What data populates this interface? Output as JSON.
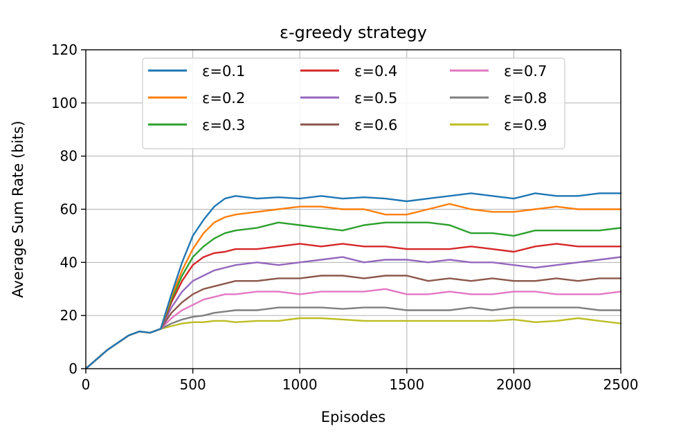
{
  "chart_data": {
    "type": "line",
    "title": "ε-greedy strategy",
    "xlabel": "Episodes",
    "ylabel": "Average Sum Rate (bits)",
    "xlim": [
      0,
      2500
    ],
    "ylim": [
      0,
      120
    ],
    "xticks": [
      0,
      500,
      1000,
      1500,
      2000,
      2500
    ],
    "yticks": [
      0,
      20,
      40,
      60,
      80,
      100,
      120
    ],
    "grid": true,
    "legend": {
      "placement": "top-center",
      "columns": 3
    },
    "series": [
      {
        "name": "ε=0.1",
        "color": "#1f77b4",
        "x": [
          0,
          100,
          200,
          250,
          300,
          350,
          400,
          450,
          500,
          550,
          600,
          650,
          700,
          800,
          900,
          1000,
          1100,
          1200,
          1300,
          1400,
          1500,
          1600,
          1700,
          1800,
          1900,
          2000,
          2100,
          2200,
          2300,
          2400,
          2500
        ],
        "y": [
          0,
          7,
          12.5,
          14,
          13.5,
          15,
          28,
          40,
          50,
          56,
          61,
          64,
          65,
          64,
          64.5,
          64,
          65,
          64,
          64.5,
          64,
          63,
          64,
          65,
          66,
          65,
          64,
          66,
          65,
          65,
          66,
          66
        ]
      },
      {
        "name": "ε=0.2",
        "color": "#ff7f0e",
        "x": [
          0,
          100,
          200,
          250,
          300,
          350,
          400,
          450,
          500,
          550,
          600,
          650,
          700,
          800,
          900,
          1000,
          1100,
          1200,
          1300,
          1400,
          1500,
          1600,
          1700,
          1800,
          1900,
          2000,
          2100,
          2200,
          2300,
          2400,
          2500
        ],
        "y": [
          0,
          7,
          12.5,
          14,
          13.5,
          15,
          27,
          37,
          45,
          51,
          55,
          57,
          58,
          59,
          60,
          61,
          61,
          60,
          60,
          58,
          58,
          60,
          62,
          60,
          59,
          59,
          60,
          61,
          60,
          60,
          60
        ]
      },
      {
        "name": "ε=0.3",
        "color": "#2ca02c",
        "x": [
          0,
          100,
          200,
          250,
          300,
          350,
          400,
          450,
          500,
          550,
          600,
          650,
          700,
          800,
          900,
          1000,
          1100,
          1200,
          1300,
          1400,
          1500,
          1600,
          1700,
          1800,
          1900,
          2000,
          2100,
          2200,
          2300,
          2400,
          2500
        ],
        "y": [
          0,
          7,
          12.5,
          14,
          13.5,
          15,
          26,
          35,
          42,
          46,
          49,
          51,
          52,
          53,
          55,
          54,
          53,
          52,
          54,
          55,
          55,
          55,
          54,
          51,
          51,
          50,
          52,
          52,
          52,
          52,
          53
        ]
      },
      {
        "name": "ε=0.4",
        "color": "#d62728",
        "x": [
          0,
          100,
          200,
          250,
          300,
          350,
          400,
          450,
          500,
          550,
          600,
          650,
          700,
          800,
          900,
          1000,
          1100,
          1200,
          1300,
          1400,
          1500,
          1600,
          1700,
          1800,
          1900,
          2000,
          2100,
          2200,
          2300,
          2400,
          2500
        ],
        "y": [
          0,
          7,
          12.5,
          14,
          13.5,
          15,
          25,
          33,
          39,
          42,
          43.5,
          44,
          45,
          45,
          46,
          47,
          46,
          47,
          46,
          46,
          45,
          45,
          45,
          46,
          45,
          44,
          46,
          47,
          46,
          46,
          46
        ]
      },
      {
        "name": "ε=0.5",
        "color": "#9467bd",
        "x": [
          0,
          100,
          200,
          250,
          300,
          350,
          400,
          450,
          500,
          550,
          600,
          650,
          700,
          800,
          900,
          1000,
          1100,
          1200,
          1300,
          1400,
          1500,
          1600,
          1700,
          1800,
          1900,
          2000,
          2100,
          2200,
          2300,
          2400,
          2500
        ],
        "y": [
          0,
          7,
          12.5,
          14,
          13.5,
          15,
          23,
          29,
          33,
          35,
          37,
          38,
          39,
          40,
          39,
          40,
          41,
          42,
          40,
          41,
          41,
          40,
          41,
          40,
          40,
          39,
          38,
          39,
          40,
          41,
          42
        ]
      },
      {
        "name": "ε=0.6",
        "color": "#8c564b",
        "x": [
          0,
          100,
          200,
          250,
          300,
          350,
          400,
          450,
          500,
          550,
          600,
          650,
          700,
          800,
          900,
          1000,
          1100,
          1200,
          1300,
          1400,
          1500,
          1600,
          1700,
          1800,
          1900,
          2000,
          2100,
          2200,
          2300,
          2400,
          2500
        ],
        "y": [
          0,
          7,
          12.5,
          14,
          13.5,
          15,
          21,
          25,
          28,
          30,
          31,
          32,
          33,
          33,
          34,
          34,
          35,
          35,
          34,
          35,
          35,
          33,
          34,
          33,
          34,
          33,
          33,
          34,
          33,
          34,
          34
        ]
      },
      {
        "name": "ε=0.7",
        "color": "#e377c2",
        "x": [
          0,
          100,
          200,
          250,
          300,
          350,
          400,
          450,
          500,
          550,
          600,
          650,
          700,
          800,
          900,
          1000,
          1100,
          1200,
          1300,
          1400,
          1500,
          1600,
          1700,
          1800,
          1900,
          2000,
          2100,
          2200,
          2300,
          2400,
          2500
        ],
        "y": [
          0,
          7,
          12.5,
          14,
          13.5,
          15,
          19,
          22,
          24,
          26,
          27,
          28,
          28,
          29,
          29,
          28,
          29,
          29,
          29,
          30,
          28,
          28,
          29,
          28,
          28,
          29,
          29,
          28,
          28,
          28,
          29
        ]
      },
      {
        "name": "ε=0.8",
        "color": "#7f7f7f",
        "x": [
          0,
          100,
          200,
          250,
          300,
          350,
          400,
          450,
          500,
          550,
          600,
          650,
          700,
          800,
          900,
          1000,
          1100,
          1200,
          1300,
          1400,
          1500,
          1600,
          1700,
          1800,
          1900,
          2000,
          2100,
          2200,
          2300,
          2400,
          2500
        ],
        "y": [
          0,
          7,
          12.5,
          14,
          13.5,
          15,
          17,
          18.5,
          19.5,
          20,
          21,
          21.5,
          22,
          22,
          23,
          23,
          23,
          22.5,
          23,
          23,
          22,
          22,
          22,
          23,
          22,
          23,
          23,
          23,
          23,
          22,
          22
        ]
      },
      {
        "name": "ε=0.9",
        "color": "#bcbd22",
        "x": [
          0,
          100,
          200,
          250,
          300,
          350,
          400,
          450,
          500,
          550,
          600,
          650,
          700,
          800,
          900,
          1000,
          1100,
          1200,
          1300,
          1400,
          1500,
          1600,
          1700,
          1800,
          1900,
          2000,
          2100,
          2200,
          2300,
          2400,
          2500
        ],
        "y": [
          0,
          7,
          12.5,
          14,
          13.5,
          15,
          16,
          17,
          17.5,
          17.5,
          18,
          18,
          17.5,
          18,
          18,
          19,
          19,
          18.5,
          18,
          18,
          18,
          18,
          18,
          18,
          18,
          18.5,
          17.5,
          18,
          19,
          18,
          17
        ]
      }
    ]
  }
}
